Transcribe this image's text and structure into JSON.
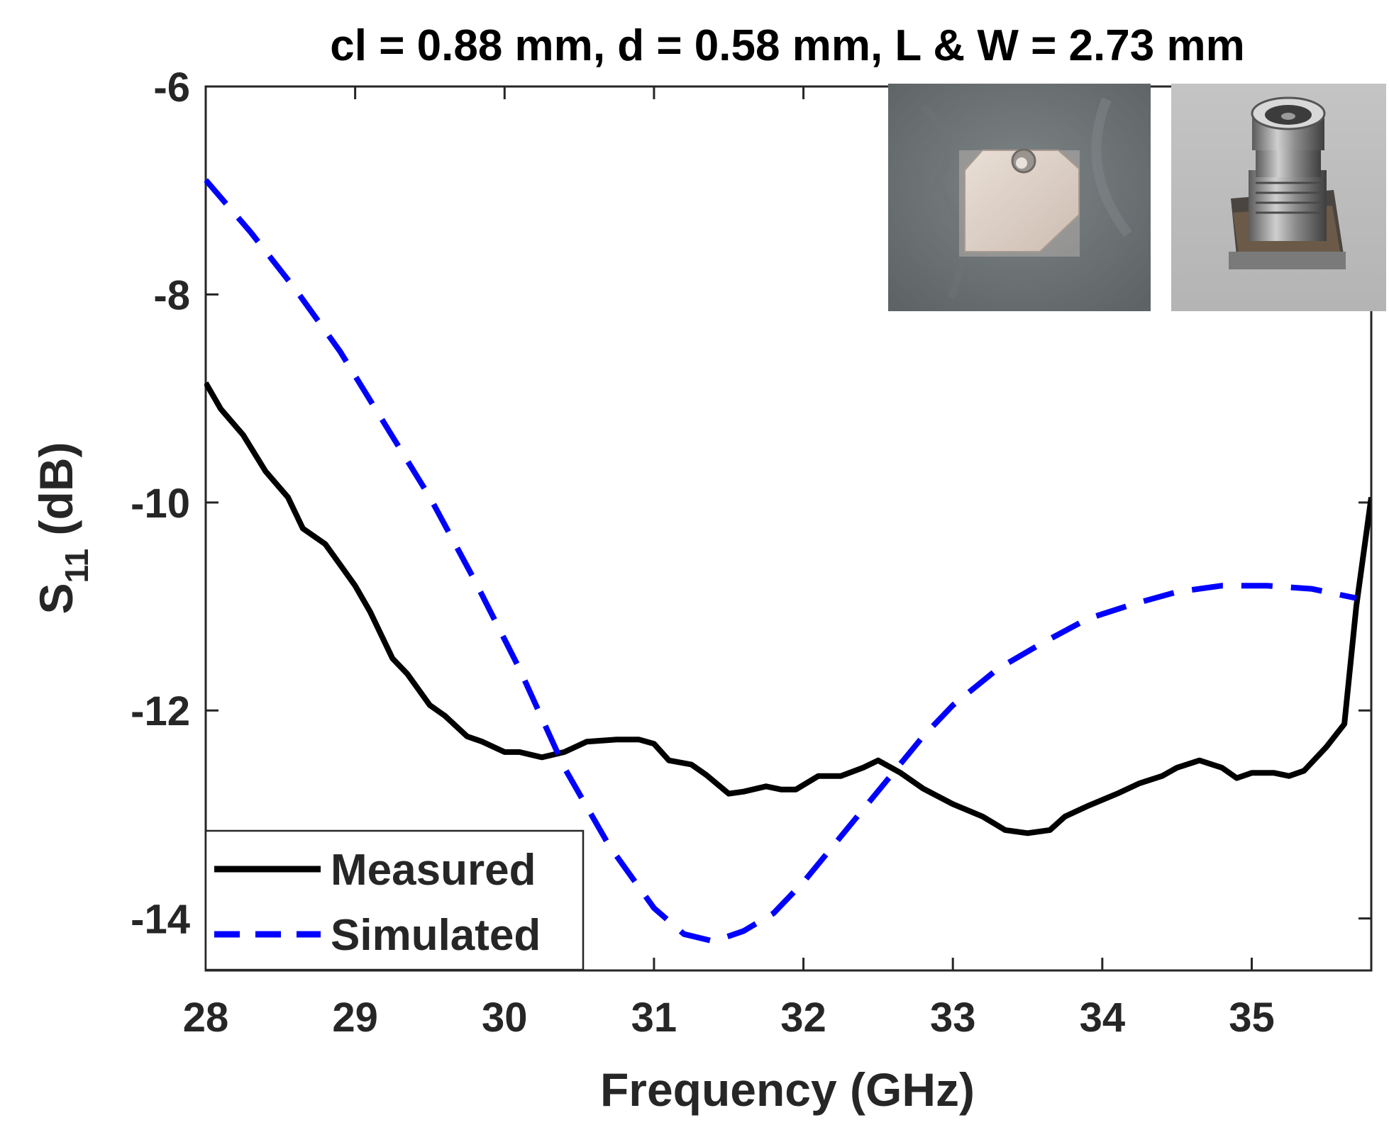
{
  "chart_data": {
    "type": "line",
    "title": "cl = 0.88 mm, d = 0.58 mm, L & W = 2.73 mm",
    "xlabel": "Frequency (GHz)",
    "ylabel_main": "S",
    "ylabel_sub": "11",
    "ylabel_rest": " (dB)",
    "xlim": [
      28,
      35.8
    ],
    "ylim": [
      -14.5,
      -6
    ],
    "xticks": [
      28,
      29,
      30,
      31,
      32,
      33,
      34,
      35
    ],
    "xtick_labels": [
      "28",
      "29",
      "30",
      "31",
      "32",
      "33",
      "34",
      "35"
    ],
    "yticks": [
      -14,
      -12,
      -10,
      -8,
      -6
    ],
    "ytick_labels": [
      "-14",
      "-12",
      "-10",
      "-8",
      "-6"
    ],
    "legend_position": "bottom-left",
    "series": [
      {
        "name": "Measured",
        "color": "#000000",
        "style": "solid",
        "points": [
          [
            28.0,
            -8.85
          ],
          [
            28.1,
            -9.1
          ],
          [
            28.25,
            -9.35
          ],
          [
            28.4,
            -9.7
          ],
          [
            28.55,
            -9.95
          ],
          [
            28.65,
            -10.25
          ],
          [
            28.8,
            -10.4
          ],
          [
            28.9,
            -10.6
          ],
          [
            29.0,
            -10.8
          ],
          [
            29.1,
            -11.05
          ],
          [
            29.25,
            -11.5
          ],
          [
            29.35,
            -11.65
          ],
          [
            29.5,
            -11.95
          ],
          [
            29.6,
            -12.05
          ],
          [
            29.75,
            -12.25
          ],
          [
            29.85,
            -12.3
          ],
          [
            30.0,
            -12.4
          ],
          [
            30.1,
            -12.4
          ],
          [
            30.25,
            -12.45
          ],
          [
            30.4,
            -12.4
          ],
          [
            30.55,
            -12.3
          ],
          [
            30.75,
            -12.28
          ],
          [
            30.9,
            -12.28
          ],
          [
            31.0,
            -12.32
          ],
          [
            31.1,
            -12.48
          ],
          [
            31.25,
            -12.52
          ],
          [
            31.35,
            -12.62
          ],
          [
            31.5,
            -12.8
          ],
          [
            31.6,
            -12.78
          ],
          [
            31.75,
            -12.73
          ],
          [
            31.85,
            -12.76
          ],
          [
            31.95,
            -12.76
          ],
          [
            32.1,
            -12.63
          ],
          [
            32.25,
            -12.63
          ],
          [
            32.4,
            -12.55
          ],
          [
            32.5,
            -12.48
          ],
          [
            32.65,
            -12.6
          ],
          [
            32.8,
            -12.75
          ],
          [
            33.0,
            -12.9
          ],
          [
            33.2,
            -13.02
          ],
          [
            33.35,
            -13.15
          ],
          [
            33.5,
            -13.18
          ],
          [
            33.65,
            -13.15
          ],
          [
            33.75,
            -13.02
          ],
          [
            33.9,
            -12.92
          ],
          [
            34.1,
            -12.8
          ],
          [
            34.25,
            -12.7
          ],
          [
            34.4,
            -12.63
          ],
          [
            34.5,
            -12.55
          ],
          [
            34.65,
            -12.48
          ],
          [
            34.8,
            -12.55
          ],
          [
            34.9,
            -12.65
          ],
          [
            35.0,
            -12.6
          ],
          [
            35.15,
            -12.6
          ],
          [
            35.25,
            -12.63
          ],
          [
            35.35,
            -12.58
          ],
          [
            35.5,
            -12.35
          ],
          [
            35.62,
            -12.13
          ],
          [
            35.7,
            -11.0
          ],
          [
            35.8,
            -9.95
          ]
        ]
      },
      {
        "name": "Simulated",
        "color": "#0000ff",
        "style": "dashed",
        "points": [
          [
            28.0,
            -6.9
          ],
          [
            28.3,
            -7.4
          ],
          [
            28.6,
            -7.95
          ],
          [
            28.9,
            -8.55
          ],
          [
            29.2,
            -9.25
          ],
          [
            29.5,
            -9.95
          ],
          [
            29.8,
            -10.75
          ],
          [
            30.1,
            -11.6
          ],
          [
            30.4,
            -12.55
          ],
          [
            30.7,
            -13.3
          ],
          [
            31.0,
            -13.9
          ],
          [
            31.2,
            -14.15
          ],
          [
            31.4,
            -14.22
          ],
          [
            31.6,
            -14.12
          ],
          [
            31.8,
            -13.95
          ],
          [
            32.0,
            -13.65
          ],
          [
            32.2,
            -13.3
          ],
          [
            32.4,
            -12.95
          ],
          [
            32.6,
            -12.6
          ],
          [
            32.8,
            -12.25
          ],
          [
            33.0,
            -11.95
          ],
          [
            33.3,
            -11.6
          ],
          [
            33.6,
            -11.35
          ],
          [
            33.9,
            -11.12
          ],
          [
            34.2,
            -10.98
          ],
          [
            34.5,
            -10.86
          ],
          [
            34.8,
            -10.8
          ],
          [
            35.1,
            -10.8
          ],
          [
            35.4,
            -10.83
          ],
          [
            35.7,
            -10.92
          ]
        ]
      }
    ],
    "insets": [
      {
        "name": "patch-antenna-photo",
        "description_icon": "photo-patch"
      },
      {
        "name": "connector-photo",
        "description_icon": "photo-connector"
      }
    ]
  }
}
